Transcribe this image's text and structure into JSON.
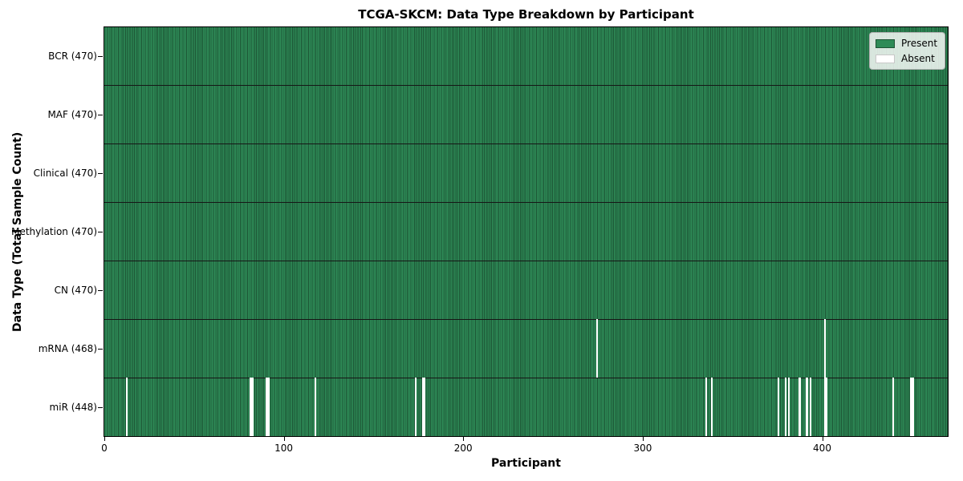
{
  "chart_data": {
    "type": "heatmap",
    "title": "TCGA-SKCM: Data Type Breakdown by Participant",
    "xlabel": "Participant",
    "ylabel": "Data Type (Total Sample Count)",
    "x_ticks": [
      0,
      100,
      200,
      300,
      400
    ],
    "xlim": [
      0,
      470
    ],
    "n_participants": 470,
    "grid": false,
    "legend_position": "upper right",
    "rows": [
      {
        "label": "BCR (470)",
        "data_type": "BCR",
        "sample_count": 470,
        "absent_participants": []
      },
      {
        "label": "MAF (470)",
        "data_type": "MAF",
        "sample_count": 470,
        "absent_participants": []
      },
      {
        "label": "Clinical (470)",
        "data_type": "Clinical",
        "sample_count": 470,
        "absent_participants": []
      },
      {
        "label": "Methylation (470)",
        "data_type": "Methylation",
        "sample_count": 470,
        "absent_participants": []
      },
      {
        "label": "CN (470)",
        "data_type": "CN",
        "sample_count": 470,
        "absent_participants": []
      },
      {
        "label": "mRNA (468)",
        "data_type": "mRNA",
        "sample_count": 468,
        "absent_participants": [
          274,
          401
        ]
      },
      {
        "label": "miR (448)",
        "data_type": "miR",
        "sample_count": 448,
        "absent_participants": [
          12,
          81,
          82,
          90,
          91,
          117,
          173,
          177,
          178,
          335,
          338,
          375,
          379,
          381,
          387,
          391,
          393,
          401,
          402,
          439,
          449,
          450
        ]
      }
    ],
    "legend": [
      {
        "label": "Present",
        "color": "#2e8b57"
      },
      {
        "label": "Absent",
        "color": "#ffffff"
      }
    ],
    "colors": {
      "present": "#2e8b57",
      "cell_edge": "#1c5434",
      "row_separator": "#161616",
      "absent": "#ffffff",
      "plot_border": "#000000",
      "legend_edge_present": "#1c5434",
      "legend_edge_absent": "#c8c8c8"
    }
  }
}
